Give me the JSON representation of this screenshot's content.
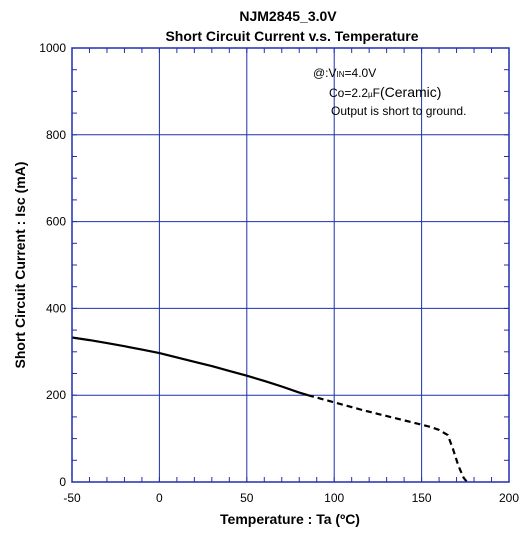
{
  "chart_data": {
    "type": "line",
    "title": "NJM2845_3.0V",
    "subtitle": "Short Circuit Current v.s. Temperature",
    "xlabel": "Temperature : Ta (ºC)",
    "ylabel": "Short Circuit Current : Isc (mA)",
    "xlim": [
      -50,
      200
    ],
    "ylim": [
      0,
      1000
    ],
    "xticks": [
      -50,
      0,
      50,
      100,
      150,
      200
    ],
    "yticks": [
      0,
      200,
      400,
      600,
      800,
      1000
    ],
    "xtick_labels": [
      "-50",
      "0",
      "50",
      "100",
      "150",
      "200"
    ],
    "ytick_labels": [
      "0",
      "200",
      "400",
      "600",
      "800",
      "1000"
    ],
    "grid": true,
    "colors": {
      "grid": "#1f2fb0",
      "frame": "#1f2fb0",
      "curve": "#000000"
    },
    "annotations": [
      {
        "prefix": "@:V",
        "sub": "IN",
        "suffix": "=4.0V"
      },
      {
        "prefix": "Co=2.2",
        "micro": "µ",
        "unit": "F",
        "large": "(Ceramic)"
      },
      {
        "text": "Output is short to ground."
      }
    ],
    "series": [
      {
        "style": "solid",
        "x": [
          -50,
          -40,
          -30,
          -20,
          -10,
          0,
          10,
          20,
          30,
          40,
          50,
          60,
          70,
          80,
          85
        ],
        "y": [
          333,
          327,
          320,
          313,
          305,
          297,
          287,
          277,
          267,
          256,
          245,
          233,
          220,
          206,
          200
        ]
      },
      {
        "style": "dashed",
        "x": [
          85,
          95,
          105,
          115,
          125,
          135,
          145,
          155,
          160,
          165,
          168,
          171,
          174,
          176
        ],
        "y": [
          200,
          189,
          178,
          167,
          157,
          147,
          137,
          127,
          120,
          108,
          75,
          38,
          10,
          0
        ]
      }
    ]
  }
}
